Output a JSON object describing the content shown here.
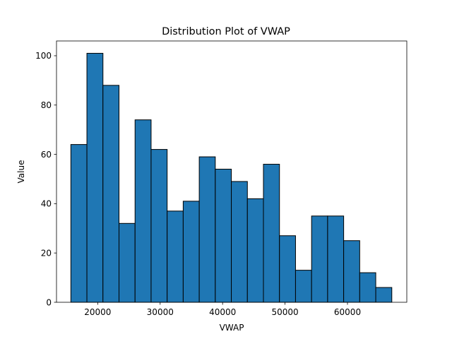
{
  "chart_data": {
    "type": "bar",
    "subtype": "histogram",
    "title": "Distribution Plot of VWAP",
    "xlabel": "VWAP",
    "ylabel": "Value",
    "xlim": [
      13400,
      69500
    ],
    "ylim": [
      0,
      106
    ],
    "xticks": [
      20000,
      30000,
      40000,
      50000,
      60000
    ],
    "yticks": [
      0,
      20,
      40,
      60,
      80,
      100
    ],
    "bin_start": 15700,
    "bin_width": 2570,
    "bins": [
      {
        "x0": 15700,
        "x1": 18270,
        "count": 64
      },
      {
        "x0": 18270,
        "x1": 20840,
        "count": 101
      },
      {
        "x0": 20840,
        "x1": 23410,
        "count": 88
      },
      {
        "x0": 23410,
        "x1": 25980,
        "count": 32
      },
      {
        "x0": 25980,
        "x1": 28550,
        "count": 74
      },
      {
        "x0": 28550,
        "x1": 31120,
        "count": 62
      },
      {
        "x0": 31120,
        "x1": 33690,
        "count": 37
      },
      {
        "x0": 33690,
        "x1": 36260,
        "count": 41
      },
      {
        "x0": 36260,
        "x1": 38830,
        "count": 59
      },
      {
        "x0": 38830,
        "x1": 41400,
        "count": 54
      },
      {
        "x0": 41400,
        "x1": 43970,
        "count": 49
      },
      {
        "x0": 43970,
        "x1": 46540,
        "count": 42
      },
      {
        "x0": 46540,
        "x1": 49110,
        "count": 56
      },
      {
        "x0": 49110,
        "x1": 51680,
        "count": 27
      },
      {
        "x0": 51680,
        "x1": 54250,
        "count": 13
      },
      {
        "x0": 54250,
        "x1": 56820,
        "count": 35
      },
      {
        "x0": 56820,
        "x1": 59390,
        "count": 35
      },
      {
        "x0": 59390,
        "x1": 61960,
        "count": 25
      },
      {
        "x0": 61960,
        "x1": 64530,
        "count": 12
      },
      {
        "x0": 64530,
        "x1": 67100,
        "count": 6
      }
    ],
    "grid": false,
    "colors": {
      "bar_fill": "#1f77b4",
      "bar_edge": "#000000",
      "axes": "#000000",
      "background": "#ffffff"
    }
  }
}
